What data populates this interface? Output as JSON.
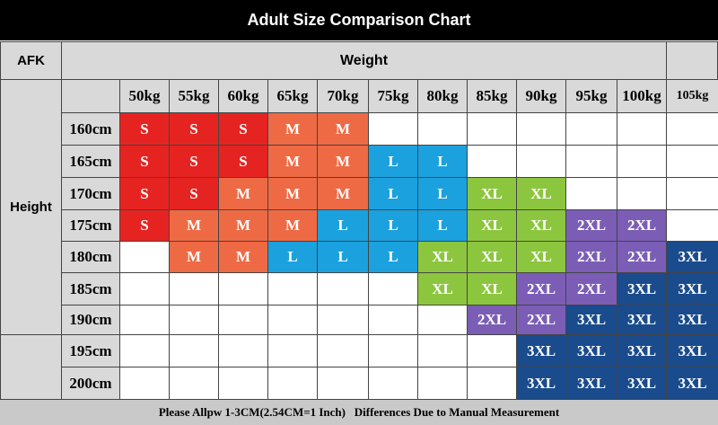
{
  "header": {
    "title": "Adult Size Comparison Chart"
  },
  "table": {
    "corner": "AFK",
    "weight_label": "Weight",
    "height_label": "Height",
    "weights": [
      "50kg",
      "55kg",
      "60kg",
      "65kg",
      "70kg",
      "75kg",
      "80kg",
      "85kg",
      "90kg",
      "95kg",
      "100kg",
      "105kg"
    ],
    "heights": [
      "160cm",
      "165cm",
      "170cm",
      "175cm",
      "180cm",
      "185cm",
      "190cm",
      "195cm",
      "200cm"
    ],
    "rows": [
      [
        "S",
        "S",
        "S",
        "M",
        "M",
        null,
        null,
        null,
        null,
        null,
        null,
        null
      ],
      [
        "S",
        "S",
        "S",
        "M",
        "M",
        "L",
        "L",
        null,
        null,
        null,
        null,
        null
      ],
      [
        "S",
        "S",
        "M",
        "M",
        "M",
        "L",
        "L",
        "XL",
        "XL",
        null,
        null,
        null
      ],
      [
        "S",
        "M",
        "M",
        "M",
        "L",
        "L",
        "L",
        "XL",
        "XL",
        "2XL",
        "2XL",
        null
      ],
      [
        null,
        "M",
        "M",
        "L",
        "L",
        "L",
        "XL",
        "XL",
        "XL",
        "2XL",
        "2XL",
        "3XL"
      ],
      [
        null,
        null,
        null,
        null,
        null,
        null,
        "XL",
        "XL",
        "2XL",
        "2XL",
        "3XL",
        "3XL"
      ],
      [
        null,
        null,
        null,
        null,
        null,
        null,
        null,
        "2XL",
        "2XL",
        "3XL",
        "3XL",
        "3XL"
      ],
      [
        null,
        null,
        null,
        null,
        null,
        null,
        null,
        null,
        "3XL",
        "3XL",
        "3XL",
        "3XL"
      ],
      [
        null,
        null,
        null,
        null,
        null,
        null,
        null,
        null,
        "3XL",
        "3XL",
        "3XL",
        "3XL"
      ]
    ],
    "size_colors": {
      "S": "#e52421",
      "M": "#ee6a45",
      "L": "#1ba1de",
      "XL": "#8cc63e",
      "2XL": "#7b5db6",
      "3XL": "#1a4b8c"
    }
  },
  "footer": {
    "note": "Please Allpw 1-3CM(2.54CM=1 Inch)   Differences Due to Manual Measurement"
  }
}
